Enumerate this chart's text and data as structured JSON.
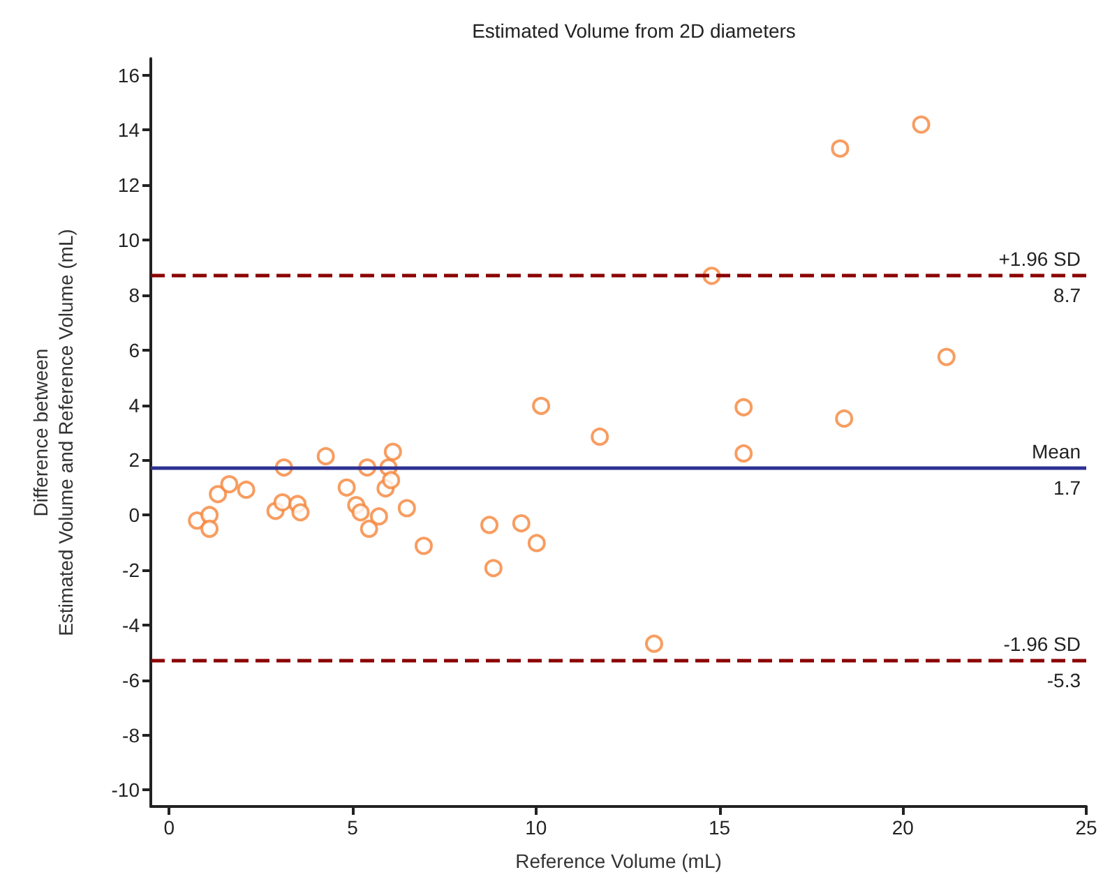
{
  "chart_data": {
    "type": "scatter",
    "title": "Estimated Volume from 2D diameters",
    "xlabel": "Reference Volume (mL)",
    "ylabel": "Difference between\nEstimated Volume and Reference Volume (mL)",
    "x": [
      0.76,
      1.1,
      1.1,
      1.33,
      1.64,
      2.1,
      2.9,
      3.09,
      3.13,
      3.5,
      3.58,
      4.27,
      4.84,
      5.1,
      5.22,
      5.4,
      5.45,
      5.72,
      5.9,
      5.98,
      6.1,
      6.05,
      6.48,
      6.94,
      8.73,
      8.84,
      9.6,
      10.02,
      10.14,
      11.74,
      13.22,
      14.79,
      15.66,
      15.66,
      18.29,
      18.4,
      20.5,
      21.19
    ],
    "values": [
      -0.2,
      0.0,
      -0.5,
      0.76,
      1.12,
      0.92,
      0.15,
      0.46,
      1.73,
      0.4,
      0.1,
      2.14,
      1.0,
      0.36,
      0.1,
      1.73,
      -0.5,
      -0.05,
      0.97,
      1.73,
      2.3,
      1.27,
      0.25,
      -1.12,
      -0.36,
      -1.93,
      -0.3,
      -1.02,
      3.97,
      2.85,
      -4.68,
      8.7,
      3.92,
      2.24,
      13.33,
      3.51,
      14.2,
      5.75
    ],
    "color": "#f5843a",
    "marker": "circle",
    "xlim": [
      -0.5,
      25
    ],
    "xticks": [
      0,
      5,
      10,
      15,
      20,
      25
    ],
    "ylim": [
      -10.6,
      16.6
    ],
    "yticks": [
      -10,
      -8,
      -6,
      -4,
      -2,
      0,
      2,
      4,
      6,
      8,
      10,
      12,
      14,
      16
    ],
    "grid": false,
    "ref_lines": [
      {
        "axis": "y",
        "value": 8.7,
        "label": "+1.96 SD",
        "color": "#8b0000",
        "line_style": "dashed"
      },
      {
        "axis": "y",
        "value": 1.7,
        "label": "Mean",
        "color": "#2e3192",
        "line_style": "solid"
      },
      {
        "axis": "y",
        "value": -5.3,
        "label": "-1.96 SD",
        "color": "#8b0000",
        "line_style": "dashed"
      }
    ],
    "annotations": [
      {
        "text": "8.7",
        "y": 8.7
      },
      {
        "text": "1.7",
        "y": 1.7
      },
      {
        "text": "-5.3",
        "y": -5.3
      }
    ]
  }
}
